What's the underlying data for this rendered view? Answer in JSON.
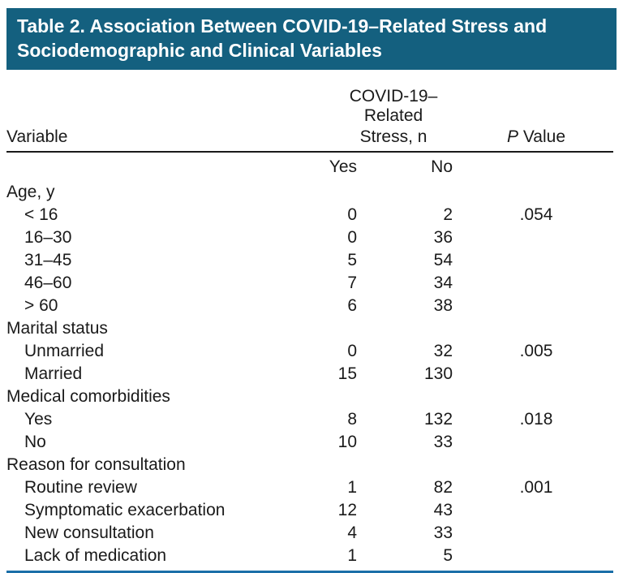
{
  "title": {
    "text": "Table 2. Association Between COVID-19–Related Stress and Sociodemographic and Clinical Variables"
  },
  "table": {
    "header": {
      "variable": "Variable",
      "stress_line1": "COVID-19–Related",
      "stress_line2": "Stress, n",
      "p_italic": "P",
      "p_rest": " Value",
      "sub_yes": "Yes",
      "sub_no": "No"
    },
    "rows": [
      {
        "label": "Age, y",
        "indent": false,
        "yes": "",
        "no": "",
        "p": ""
      },
      {
        "label": "< 16",
        "indent": true,
        "yes": "0",
        "no": "2",
        "p": ".054"
      },
      {
        "label": "16–30",
        "indent": true,
        "yes": "0",
        "no": "36",
        "p": ""
      },
      {
        "label": "31–45",
        "indent": true,
        "yes": "5",
        "no": "54",
        "p": ""
      },
      {
        "label": "46–60",
        "indent": true,
        "yes": "7",
        "no": "34",
        "p": ""
      },
      {
        "label": "> 60",
        "indent": true,
        "yes": "6",
        "no": "38",
        "p": ""
      },
      {
        "label": "Marital status",
        "indent": false,
        "yes": "",
        "no": "",
        "p": ""
      },
      {
        "label": "Unmarried",
        "indent": true,
        "yes": "0",
        "no": "32",
        "p": ".005"
      },
      {
        "label": "Married",
        "indent": true,
        "yes": "15",
        "no": "130",
        "p": ""
      },
      {
        "label": "Medical comorbidities",
        "indent": false,
        "yes": "",
        "no": "",
        "p": ""
      },
      {
        "label": "Yes",
        "indent": true,
        "yes": "8",
        "no": "132",
        "p": ".018"
      },
      {
        "label": "No",
        "indent": true,
        "yes": "10",
        "no": "33",
        "p": ""
      },
      {
        "label": "Reason for consultation",
        "indent": false,
        "yes": "",
        "no": "",
        "p": ""
      },
      {
        "label": "Routine review",
        "indent": true,
        "yes": "1",
        "no": "82",
        "p": ".001"
      },
      {
        "label": "Symptomatic exacerbation",
        "indent": true,
        "yes": "12",
        "no": "43",
        "p": ""
      },
      {
        "label": "New consultation",
        "indent": true,
        "yes": "4",
        "no": "33",
        "p": ""
      },
      {
        "label": "Lack of medication",
        "indent": true,
        "yes": "1",
        "no": "5",
        "p": ""
      }
    ]
  },
  "colors": {
    "header_bar": "#14607F",
    "header_rule": "#1a1a1a",
    "bottom_rule": "#1B6FA8"
  }
}
